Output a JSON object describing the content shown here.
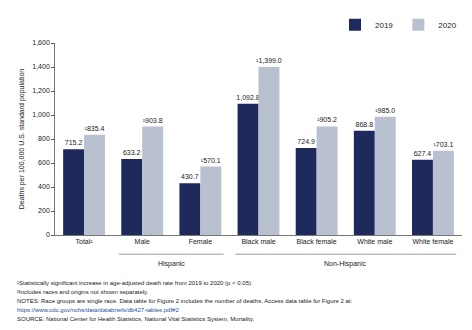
{
  "chart_data": {
    "type": "bar",
    "y_label": "Deaths per 100,000 U.S. standard population",
    "categories": [
      "Total²",
      "Male",
      "Female",
      "Black male",
      "Black female",
      "White male",
      "White female"
    ],
    "group_labels": [
      {
        "label": "Hispanic",
        "categories": [
          "Male",
          "Female"
        ]
      },
      {
        "label": "Non-Hispanic",
        "categories": [
          "Black male",
          "Black female",
          "White male",
          "White female"
        ]
      }
    ],
    "series": [
      {
        "name": "2019",
        "color": "#1f2a5c",
        "values": [
          715.2,
          633.2,
          430.7,
          1092.8,
          724.9,
          868.8,
          627.4
        ],
        "value_labels": [
          "715.2",
          "633.2",
          "430.7",
          "1,092.8",
          "724.9",
          "868.8",
          "627.4"
        ]
      },
      {
        "name": "2020",
        "color": "#b9c0d0",
        "values": [
          835.4,
          903.8,
          570.1,
          1399.0,
          905.2,
          985.0,
          703.1
        ],
        "value_labels": [
          "¹835.4",
          "¹903.8",
          "¹570.1",
          "¹1,399.0",
          "¹905.2",
          "¹985.0",
          "¹703.1"
        ]
      }
    ],
    "ylim": [
      0,
      1600
    ],
    "yticks": [
      0,
      200,
      400,
      600,
      800,
      {
        "value": 1000,
        "label": "1,000"
      },
      {
        "value": 1200,
        "label": "1,200"
      },
      {
        "value": 1400,
        "label": "1,400"
      },
      {
        "value": 1600,
        "label": "1,600"
      }
    ],
    "grid": false,
    "legend": "top right",
    "data_labels": true,
    "footnotes": [
      "¹Statistically significant increase in age-adjusted death rate from 2019 to 2020 (p < 0.05).",
      "²Includes races and origins not shown separately.",
      "NOTES: Race groups are single race. Data table for Figure 2 includes the number of deaths. Access data table for Figure 2 at:",
      "https://www.cdc.gov/nchs/data/databriefs/db427-tables.pdf#2",
      "SOURCE: National Center for Health Statistics, National Vital Statistics System, Mortality."
    ]
  }
}
